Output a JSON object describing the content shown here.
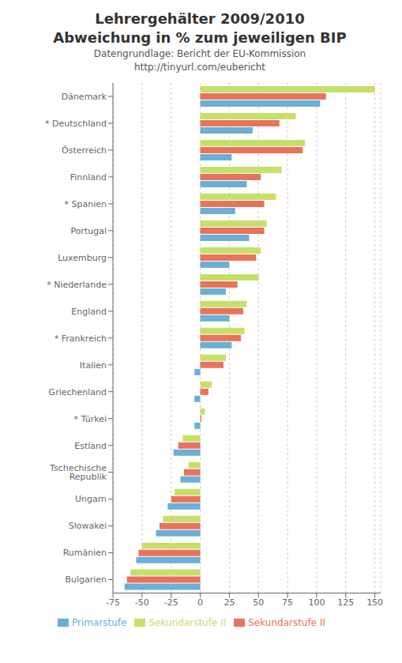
{
  "chart_data": {
    "type": "bar",
    "orientation": "horizontal",
    "title": [
      "Lehrergehälter 2009/2010",
      "Abweichung in % zum jeweiligen BIP"
    ],
    "subtitle": [
      "Datengrundlage: Bericht der EU-Kommission",
      "http://tinyurl.com/eubericht"
    ],
    "categories": [
      "Dänemark",
      "* Deutschland",
      "Österreich",
      "Finnland",
      "* Spanien",
      "Portugal",
      "Luxemburg",
      "* Niederlande",
      "England",
      "* Frankreich",
      "Italien",
      "Griechenland",
      "* Türkei",
      "Estland",
      "Tschechische Republik",
      "Ungarn",
      "Slowakei",
      "Rumänien",
      "Bulgarien"
    ],
    "series": [
      {
        "name": "Sekundarstufe II",
        "color": "#C5E06A",
        "values": [
          150,
          82,
          90,
          70,
          65,
          57,
          52,
          50,
          40,
          38,
          22,
          10,
          4,
          -15,
          -10,
          -22,
          -32,
          -50,
          -60
        ]
      },
      {
        "name": "Sekundarstufe II",
        "color": "#E8735A",
        "values": [
          108,
          68,
          88,
          52,
          55,
          55,
          48,
          32,
          37,
          35,
          20,
          7,
          1,
          -19,
          -14,
          -25,
          -35,
          -53,
          -63
        ]
      },
      {
        "name": "Primarstufe",
        "color": "#6BAFD6",
        "values": [
          103,
          45,
          27,
          40,
          30,
          42,
          25,
          22,
          25,
          27,
          -5,
          -5,
          -5,
          -23,
          -17,
          -28,
          -38,
          -55,
          -65
        ]
      }
    ],
    "xlim": [
      -75,
      155
    ],
    "xticks": [
      -75,
      -50,
      -25,
      0,
      25,
      50,
      75,
      100,
      125,
      150
    ],
    "grid": true,
    "legend": "bottom"
  }
}
